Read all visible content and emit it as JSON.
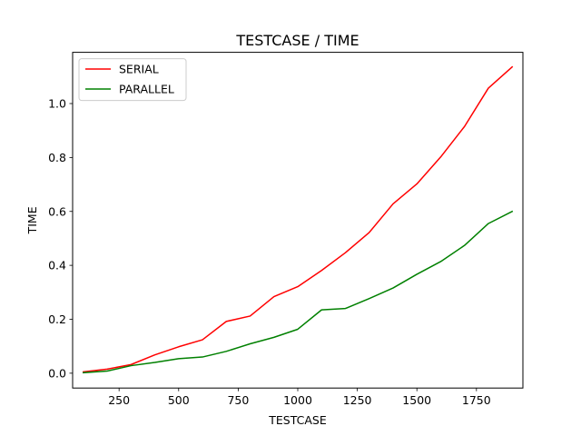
{
  "chart_data": {
    "type": "line",
    "title": "TESTCASE / TIME",
    "xlabel": "TESTCASE",
    "ylabel": "TIME",
    "xlim": [
      55,
      1945
    ],
    "ylim": [
      -0.055,
      1.19
    ],
    "xticks": [
      250,
      500,
      750,
      1000,
      1250,
      1500,
      1750
    ],
    "yticks": [
      0.0,
      0.2,
      0.4,
      0.6,
      0.8,
      1.0
    ],
    "xtick_labels": [
      "250",
      "500",
      "750",
      "1000",
      "1250",
      "1500",
      "1750"
    ],
    "ytick_labels": [
      "0.0",
      "0.2",
      "0.4",
      "0.6",
      "0.8",
      "1.0"
    ],
    "grid": false,
    "legend_position": "top-left",
    "x": [
      100,
      200,
      300,
      400,
      500,
      600,
      700,
      800,
      900,
      1000,
      1100,
      1200,
      1300,
      1400,
      1500,
      1600,
      1700,
      1800,
      1900
    ],
    "series": [
      {
        "name": "SERIAL",
        "color": "#ff0000",
        "values": [
          0.005,
          0.015,
          0.032,
          0.068,
          0.098,
          0.124,
          0.192,
          0.212,
          0.284,
          0.321,
          0.381,
          0.447,
          0.522,
          0.628,
          0.702,
          0.802,
          0.915,
          1.057,
          1.136
        ]
      },
      {
        "name": "PARALLEL",
        "color": "#008000",
        "values": [
          0.002,
          0.008,
          0.028,
          0.04,
          0.054,
          0.06,
          0.081,
          0.109,
          0.133,
          0.163,
          0.235,
          0.24,
          0.277,
          0.316,
          0.367,
          0.414,
          0.474,
          0.555,
          0.6
        ]
      }
    ]
  }
}
